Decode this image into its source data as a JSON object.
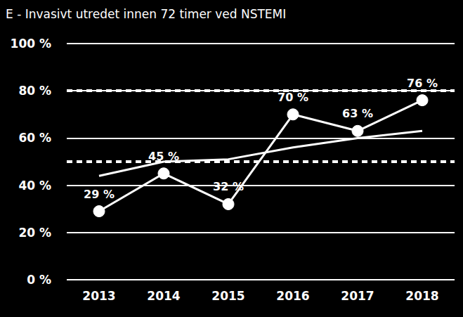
{
  "chart_data": {
    "type": "line",
    "title": "E - Invasivt utredet innen 72 timer ved NSTEMI",
    "categories": [
      "2013",
      "2014",
      "2015",
      "2016",
      "2017",
      "2018"
    ],
    "series": [
      {
        "color": "#ffffff",
        "marker": "circle",
        "line_style": "solid",
        "data_labels": true,
        "values": [
          29,
          45,
          32,
          70,
          63,
          76
        ],
        "value_labels": [
          "29 %",
          "45 %",
          "32 %",
          "70 %",
          "63 %",
          "76 %"
        ]
      },
      {
        "color": "#ffffff",
        "marker": "none",
        "line_style": "solid",
        "data_labels": false,
        "values": [
          44,
          50,
          51,
          56,
          60,
          63
        ]
      }
    ],
    "reference_lines": [
      80,
      50
    ],
    "ylim": [
      0,
      100
    ],
    "yticks": [
      {
        "value": 0,
        "label": "0 %"
      },
      {
        "value": 20,
        "label": "20 %"
      },
      {
        "value": 40,
        "label": "40 %"
      },
      {
        "value": 60,
        "label": "60 %"
      },
      {
        "value": 80,
        "label": "80 %"
      },
      {
        "value": 100,
        "label": "100 %"
      }
    ],
    "grid": true
  }
}
